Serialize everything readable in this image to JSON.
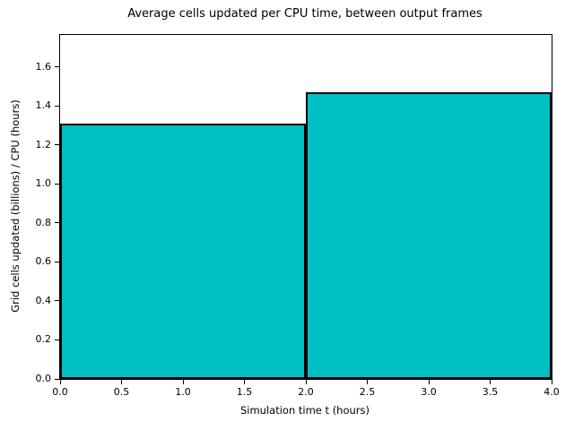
{
  "chart_data": {
    "type": "bar",
    "title": "Average cells updated per CPU time, between output frames",
    "xlabel": "Simulation time t (hours)",
    "ylabel": "Grid cells updated (billions) / CPU (hours)",
    "bars": [
      {
        "x_start": 0.0,
        "x_end": 2.0,
        "value": 1.31
      },
      {
        "x_start": 2.0,
        "x_end": 4.0,
        "value": 1.47
      }
    ],
    "xlim": [
      0.0,
      4.0
    ],
    "ylim": [
      0.0,
      1.764
    ],
    "x_ticks": [
      0.0,
      0.5,
      1.0,
      1.5,
      2.0,
      2.5,
      3.0,
      3.5,
      4.0
    ],
    "y_ticks": [
      0.0,
      0.2,
      0.4,
      0.6,
      0.8,
      1.0,
      1.2,
      1.4,
      1.6
    ],
    "tick_decimals": 1,
    "bar_fill_color": "#00BFC4",
    "bar_edge_color": "#000000",
    "grid": false,
    "legend": null
  }
}
